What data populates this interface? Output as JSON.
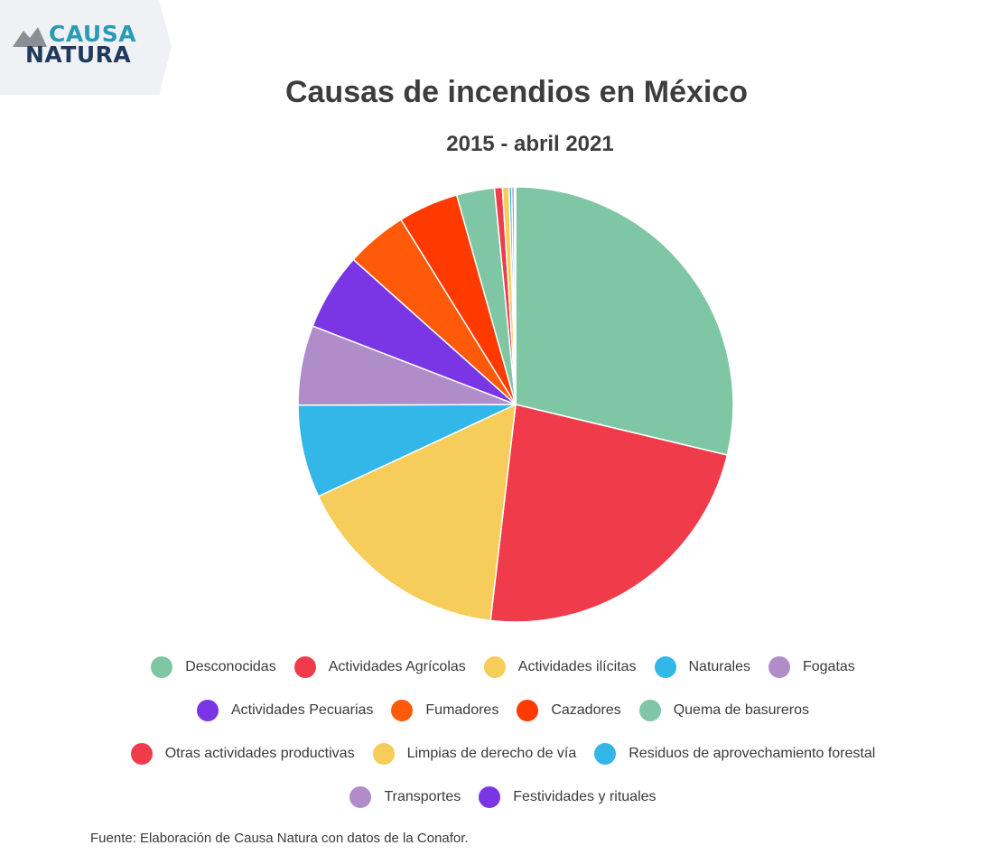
{
  "logo": {
    "line1": "CAUSA",
    "line2": "NATURA"
  },
  "source_note": "Fuente: Elaboración de Causa Natura con datos de la Conafor.",
  "chart_data": {
    "type": "pie",
    "title": "Causas de incendios en México",
    "subtitle": "2015 - abril 2021",
    "legend_position": "bottom",
    "slices": [
      {
        "label": "Desconocidas",
        "value": 29.6,
        "color": "#7fc6a4"
      },
      {
        "label": "Actividades Agrícolas",
        "value": 23.8,
        "color": "#ef3b4a"
      },
      {
        "label": "Actividades ilícitas",
        "value": 16.7,
        "color": "#f6cc5a"
      },
      {
        "label": "Naturales",
        "value": 7.1,
        "color": "#33b6e8"
      },
      {
        "label": "Fogatas",
        "value": 6.1,
        "color": "#b08cc8"
      },
      {
        "label": "Actividades Pecuarias",
        "value": 5.9,
        "color": "#7a36e4"
      },
      {
        "label": "Fumadores",
        "value": 4.7,
        "color": "#ff5a0a"
      },
      {
        "label": "Cazadores",
        "value": 4.6,
        "color": "#ff3a00"
      },
      {
        "label": "Quema de basureros",
        "value": 2.9,
        "color": "#7fc6a4"
      },
      {
        "label": "Otras actividades productivas",
        "value": 0.6,
        "color": "#ef3b4a"
      },
      {
        "label": "Limpias de derecho de vía",
        "value": 0.5,
        "color": "#f6cc5a"
      },
      {
        "label": "Residuos de aprovechamiento forestal",
        "value": 0.2,
        "color": "#33b6e8"
      },
      {
        "label": "Transportes",
        "value": 0.2,
        "color": "#b08cc8"
      },
      {
        "label": "Festividades y rituales",
        "value": 0.1,
        "color": "#7a36e4"
      }
    ]
  }
}
